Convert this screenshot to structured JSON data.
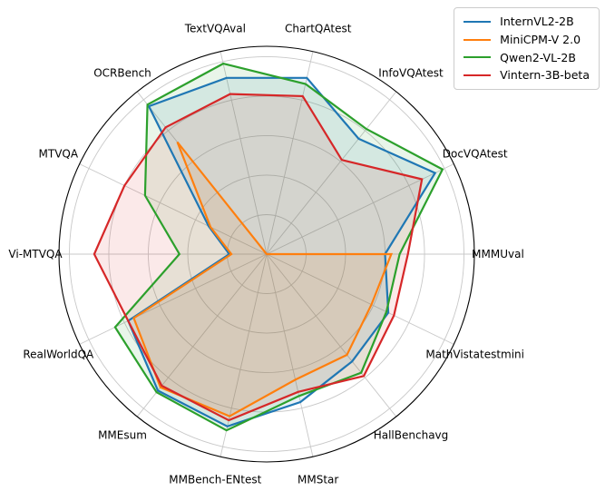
{
  "figure": {
    "background": "#ffffff",
    "grid_color": "#c8c8c8",
    "outer_circle_color": "#000000"
  },
  "legend": {
    "position": "top-right",
    "items": [
      {
        "label": "InternVL2-2B",
        "color": "#1f77b4"
      },
      {
        "label": "MiniCPM-V 2.0",
        "color": "#ff7f0e"
      },
      {
        "label": "Qwen2-VL-2B",
        "color": "#2ca02c"
      },
      {
        "label": "Vintern-3B-beta",
        "color": "#d62728"
      }
    ]
  },
  "chart_data": {
    "type": "radar",
    "title": "",
    "axes": [
      "MMMUval",
      "DocVQAtest",
      "InfoVQAtest",
      "ChartQAtest",
      "TextVQAval",
      "OCRBench",
      "MTVQA",
      "Vi-MTVQA",
      "RealWorldQA",
      "MMEsum",
      "MMBench-ENtest",
      "MMStar",
      "HallBenchavg",
      "MathVistatestmini"
    ],
    "start_angle_deg": 0,
    "direction": "counterclockwise",
    "scale_note": "values are percent of outer ring radius (0-100); radial gridlines unlabeled",
    "rings_pct": [
      19,
      38,
      57,
      76,
      95
    ],
    "value_range": [
      0,
      100
    ],
    "grid": true,
    "legend_position": "upper right",
    "series": [
      {
        "name": "InternVL2-2B",
        "color": "#1f77b4",
        "values": [
          57,
          90,
          71,
          87,
          87,
          91,
          31,
          18,
          74,
          84,
          85,
          73,
          66,
          65
        ]
      },
      {
        "name": "MiniCPM-V 2.0",
        "color": "#ff7f0e",
        "values": [
          60,
          0,
          0,
          0,
          0,
          69,
          30,
          17,
          71,
          82,
          80,
          62,
          62,
          56
        ]
      },
      {
        "name": "Qwen2-VL-2B",
        "color": "#2ca02c",
        "values": [
          64,
          94,
          77,
          84,
          94,
          92,
          65,
          42,
          81,
          85,
          87,
          70,
          73,
          64
        ]
      },
      {
        "name": "Vintern-3B-beta",
        "color": "#d62728",
        "values": [
          68,
          83,
          58,
          78,
          79,
          78,
          76,
          83,
          74,
          81,
          82,
          68,
          75,
          68
        ]
      }
    ]
  }
}
